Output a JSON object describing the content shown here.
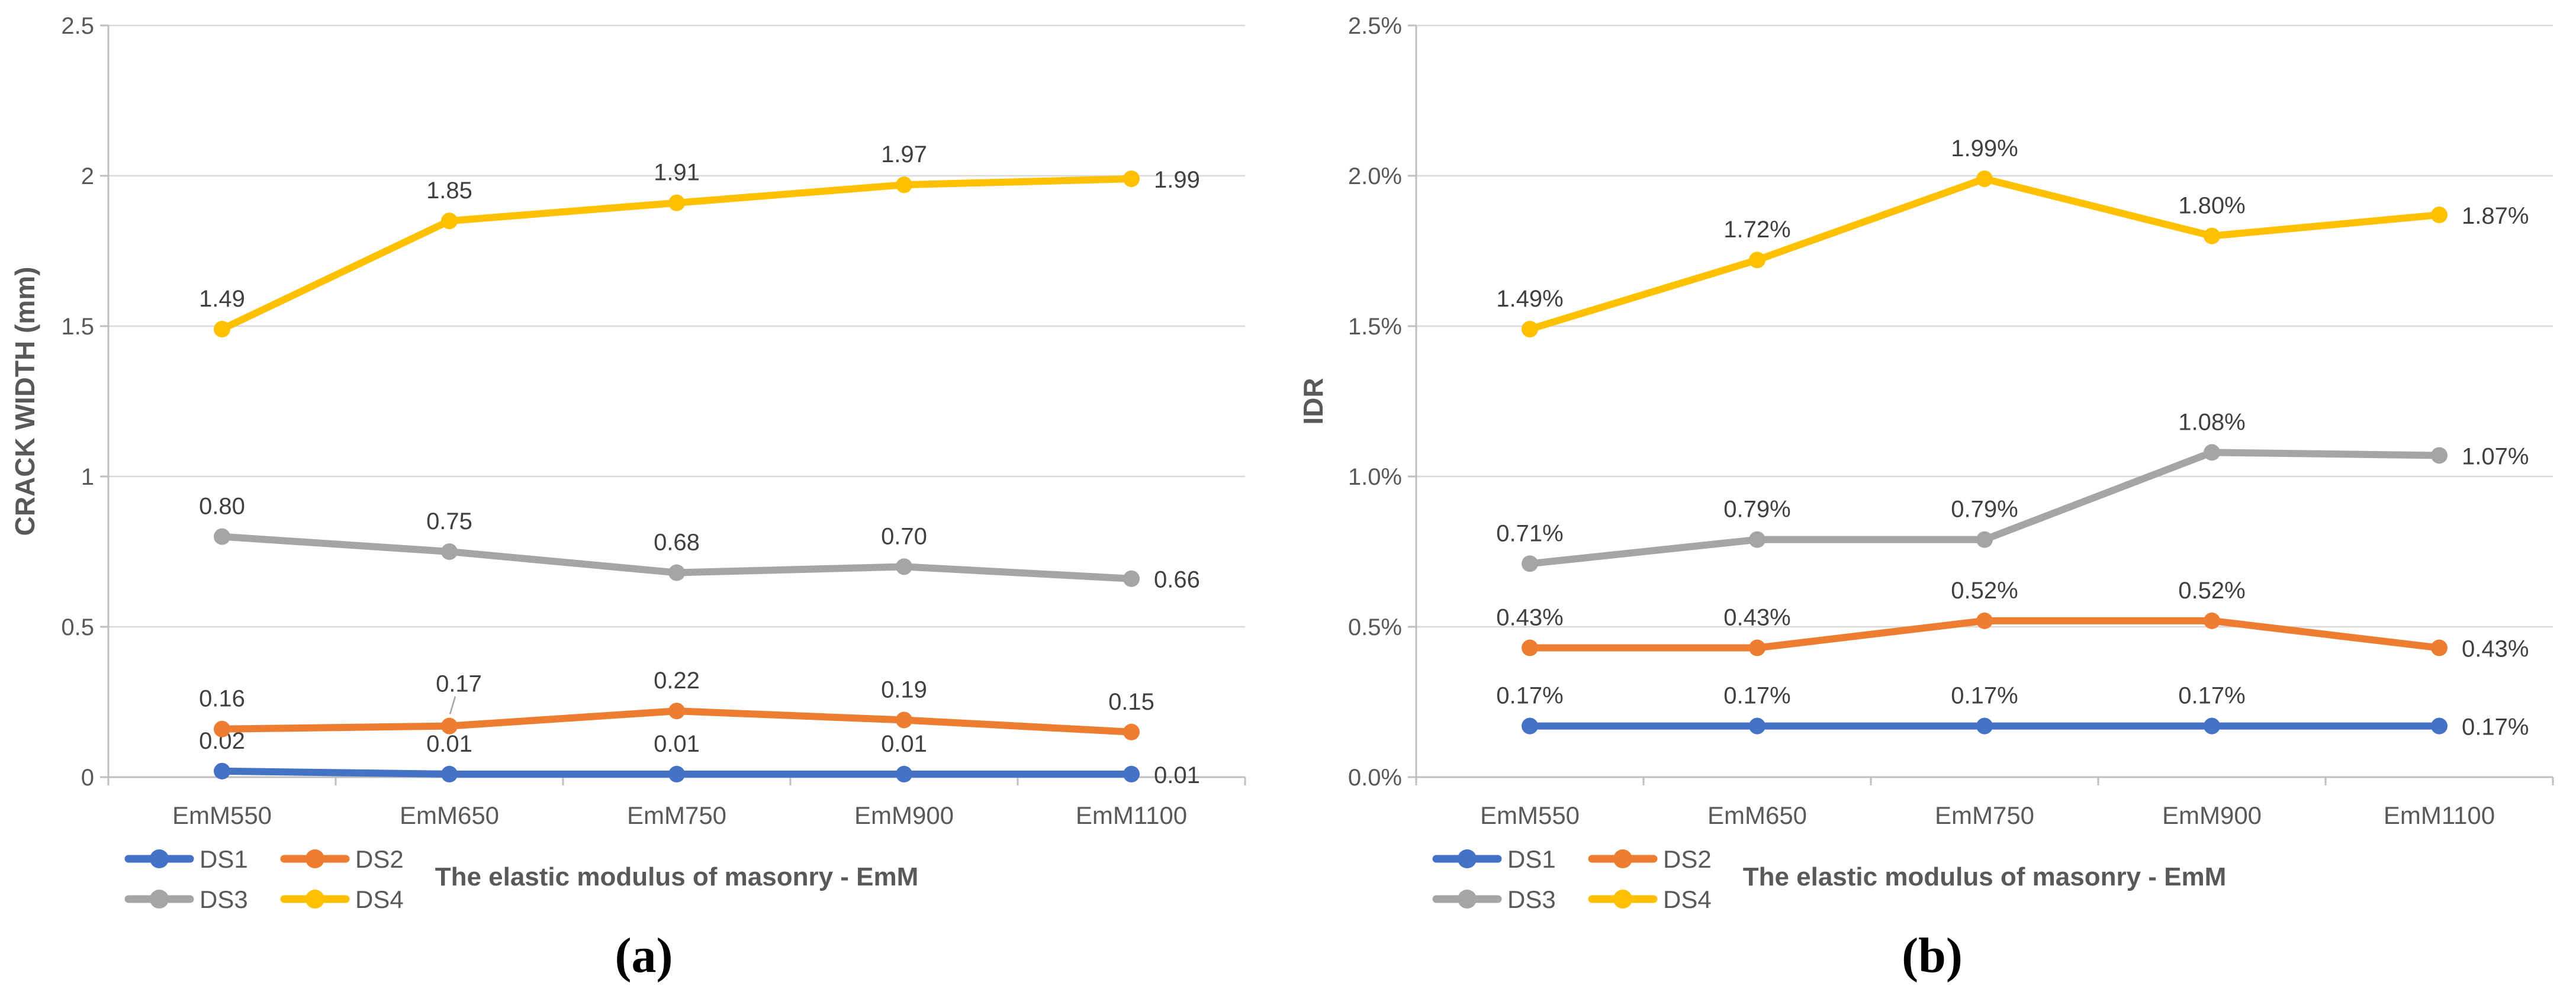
{
  "figure": {
    "background": "#FFFFFF",
    "caption_a": "(a)",
    "caption_b": "(b)",
    "style": {
      "gridline_color": "#D9D9D9",
      "axis_line_color": "#BFBFBF",
      "tick_label_color": "#595959",
      "data_label_color": "#404040",
      "axis_title_color": "#595959",
      "legend_text_color": "#595959",
      "leader_line_color": "#A6A6A6"
    }
  },
  "chart_data": [
    {
      "type": "line",
      "panel": "a",
      "caption": "(a)",
      "xlabel": "The elastic modulus of masonry - EmM",
      "ylabel": "CRACK WIDTH (mm)",
      "categories": [
        "EmM550",
        "EmM650",
        "EmM750",
        "EmM900",
        "EmM1100"
      ],
      "ylim": [
        0,
        2.5
      ],
      "ytick_values": [
        0,
        0.5,
        1,
        1.5,
        2,
        2.5
      ],
      "ytick_labels": [
        "0",
        "0.5",
        "1",
        "1.5",
        "2",
        "2.5"
      ],
      "grid": "horizontal",
      "legend_position": "bottom-left two-row",
      "series": [
        {
          "name": "DS1",
          "color": "#4472C4",
          "values": [
            0.02,
            0.01,
            0.01,
            0.01,
            0.01
          ],
          "point_labels": [
            "0.02",
            "0.01",
            "0.01",
            "0.01",
            "0.01"
          ],
          "label_placement": [
            "above",
            "above",
            "above",
            "above",
            "right"
          ]
        },
        {
          "name": "DS2",
          "color": "#ED7D31",
          "values": [
            0.16,
            0.17,
            0.22,
            0.19,
            0.15
          ],
          "point_labels": [
            "0.16",
            "0.17",
            "0.22",
            "0.19",
            "0.15"
          ],
          "label_placement": [
            "above",
            "above-leader",
            "above",
            "above",
            "above"
          ]
        },
        {
          "name": "DS3",
          "color": "#A5A5A5",
          "values": [
            0.8,
            0.75,
            0.68,
            0.7,
            0.66
          ],
          "point_labels": [
            "0.80",
            "0.75",
            "0.68",
            "0.70",
            "0.66"
          ],
          "label_placement": [
            "above",
            "above",
            "above",
            "above",
            "right"
          ]
        },
        {
          "name": "DS4",
          "color": "#FFC000",
          "values": [
            1.49,
            1.85,
            1.91,
            1.97,
            1.99
          ],
          "point_labels": [
            "1.49",
            "1.85",
            "1.91",
            "1.97",
            "1.99"
          ],
          "label_placement": [
            "above",
            "above",
            "above",
            "above",
            "right"
          ]
        }
      ]
    },
    {
      "type": "line",
      "panel": "b",
      "caption": "(b)",
      "xlabel": "The elastic modulus of masonry - EmM",
      "ylabel": "IDR",
      "categories": [
        "EmM550",
        "EmM650",
        "EmM750",
        "EmM900",
        "EmM1100"
      ],
      "ylim": [
        0,
        2.5
      ],
      "ytick_values": [
        0,
        0.5,
        1,
        1.5,
        2,
        2.5
      ],
      "ytick_labels": [
        "0.0%",
        "0.5%",
        "1.0%",
        "1.5%",
        "2.0%",
        "2.5%"
      ],
      "grid": "horizontal",
      "legend_position": "bottom-left two-row",
      "series": [
        {
          "name": "DS1",
          "color": "#4472C4",
          "values": [
            0.17,
            0.17,
            0.17,
            0.17,
            0.17
          ],
          "point_labels": [
            "0.17%",
            "0.17%",
            "0.17%",
            "0.17%",
            "0.17%"
          ],
          "label_placement": [
            "above",
            "above",
            "above",
            "above",
            "right"
          ]
        },
        {
          "name": "DS2",
          "color": "#ED7D31",
          "values": [
            0.43,
            0.43,
            0.52,
            0.52,
            0.43
          ],
          "point_labels": [
            "0.43%",
            "0.43%",
            "0.52%",
            "0.52%",
            "0.43%"
          ],
          "label_placement": [
            "above",
            "above",
            "above",
            "above",
            "right"
          ]
        },
        {
          "name": "DS3",
          "color": "#A5A5A5",
          "values": [
            0.71,
            0.79,
            0.79,
            1.08,
            1.07
          ],
          "point_labels": [
            "0.71%",
            "0.79%",
            "0.79%",
            "1.08%",
            "1.07%"
          ],
          "label_placement": [
            "above",
            "above",
            "above",
            "above",
            "right"
          ]
        },
        {
          "name": "DS4",
          "color": "#FFC000",
          "values": [
            1.49,
            1.72,
            1.99,
            1.8,
            1.87
          ],
          "point_labels": [
            "1.49%",
            "1.72%",
            "1.99%",
            "1.80%",
            "1.87%"
          ],
          "label_placement": [
            "above",
            "above",
            "above",
            "above",
            "right"
          ]
        }
      ]
    }
  ]
}
